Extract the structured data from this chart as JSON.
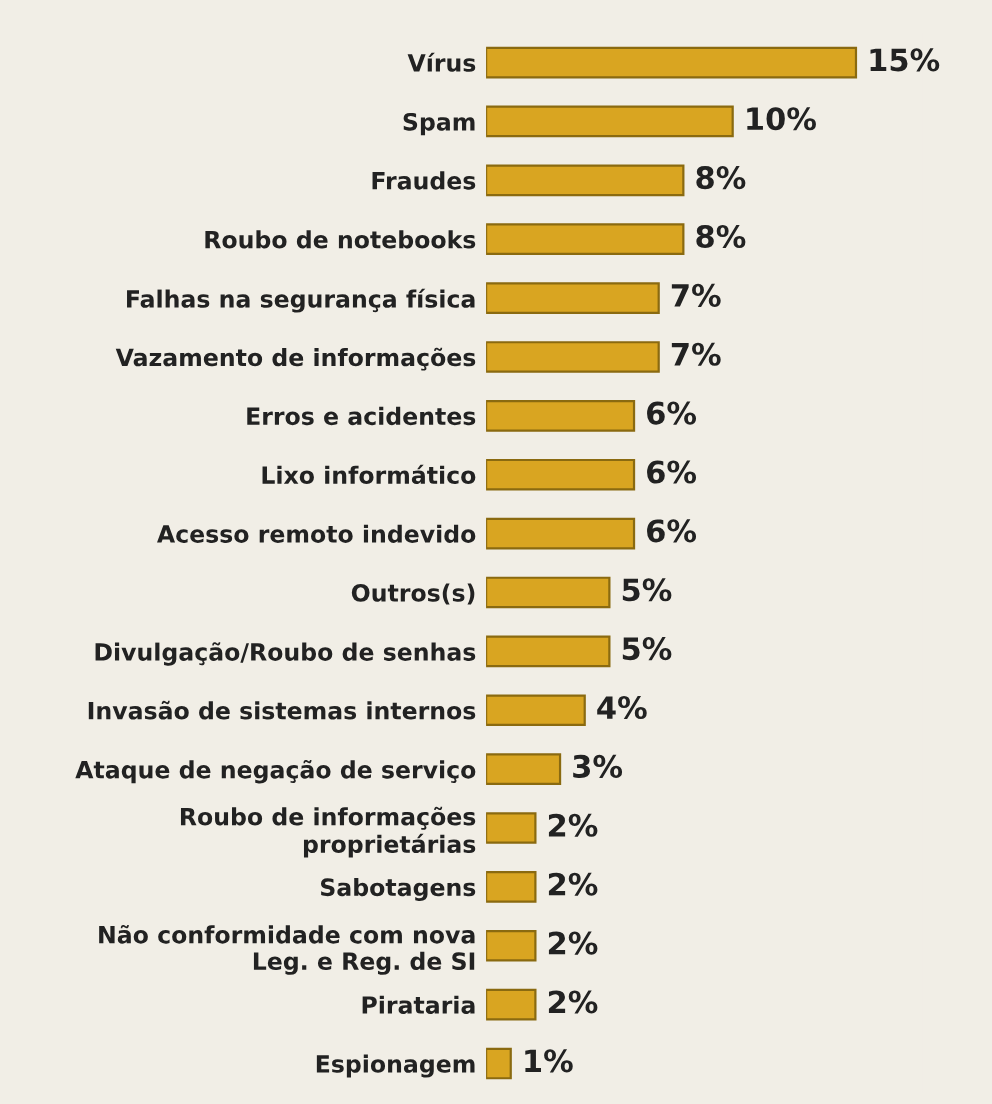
{
  "chart_data": {
    "type": "bar",
    "orientation": "horizontal",
    "categories": [
      "Vírus",
      "Spam",
      "Fraudes",
      "Roubo de notebooks",
      "Falhas na segurança física",
      "Vazamento de informações",
      "Erros e acidentes",
      "Lixo informático",
      "Acesso remoto indevido",
      "Outros(s)",
      "Divulgação/Roubo de senhas",
      "Invasão de sistemas internos",
      "Ataque de negação de serviço",
      "Roubo de informações\nproprietárias",
      "Sabotagens",
      "Não conformidade com nova\nLeg. e Reg. de SI",
      "Pirataria",
      "Espionagem"
    ],
    "values": [
      15,
      10,
      8,
      8,
      7,
      7,
      6,
      6,
      6,
      5,
      5,
      4,
      3,
      2,
      2,
      2,
      2,
      1
    ],
    "value_labels": [
      "15%",
      "10%",
      "8%",
      "8%",
      "7%",
      "7%",
      "6%",
      "6%",
      "6%",
      "5%",
      "5%",
      "4%",
      "3%",
      "2%",
      "2%",
      "2%",
      "2%",
      "1%"
    ],
    "color": "#d9a521",
    "tick_labels": "y",
    "grid": false,
    "legend": false
  }
}
